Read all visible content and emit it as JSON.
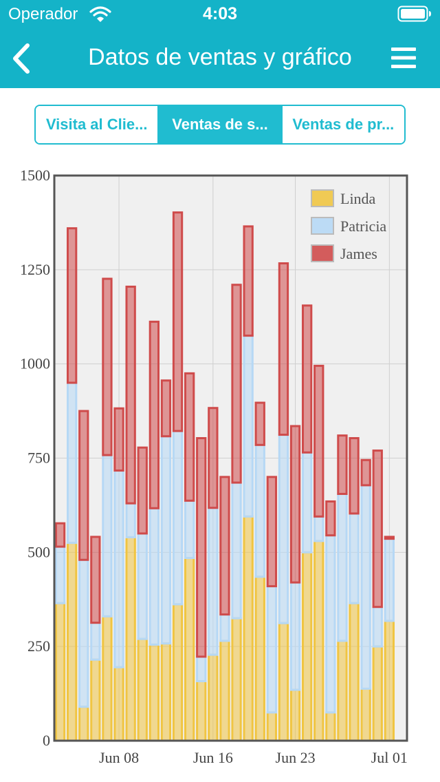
{
  "status": {
    "carrier": "Operador",
    "time": "4:03"
  },
  "nav": {
    "title": "Datos de ventas y gráfico"
  },
  "tabs": [
    {
      "label": "Visita al Clie...",
      "active": false
    },
    {
      "label": "Ventas de s...",
      "active": true
    },
    {
      "label": "Ventas de pr...",
      "active": false
    }
  ],
  "colors": {
    "header": "#14b3c8",
    "accent": "#20bcd0",
    "linda": "#f0c542",
    "patricia": "#b6d8f5",
    "james": "#cf4b4b"
  },
  "chart_data": {
    "type": "bar",
    "stacked": true,
    "categories": [
      "Jun 03",
      "Jun 04",
      "Jun 05",
      "Jun 06",
      "Jun 07",
      "Jun 08",
      "Jun 09",
      "Jun 10",
      "Jun 11",
      "Jun 12",
      "Jun 13",
      "Jun 14",
      "Jun 15",
      "Jun 16",
      "Jun 17",
      "Jun 18",
      "Jun 19",
      "Jun 20",
      "Jun 21",
      "Jun 22",
      "Jun 23",
      "Jun 24",
      "Jun 25",
      "Jun 26",
      "Jun 27",
      "Jun 28",
      "Jun 29",
      "Jun 30",
      "Jul 01",
      "Jul 02"
    ],
    "x_tick_labels": [
      "Jun 08",
      "Jun 16",
      "Jun 23",
      "Jul 01"
    ],
    "series": [
      {
        "name": "Linda",
        "values": [
          365,
          525,
          90,
          215,
          330,
          195,
          540,
          270,
          255,
          258,
          362,
          485,
          158,
          228,
          265,
          325,
          595,
          435,
          75,
          312,
          135,
          500,
          530,
          75,
          265,
          365,
          138,
          250,
          318,
          0
        ]
      },
      {
        "name": "Patricia",
        "values": [
          150,
          425,
          390,
          98,
          428,
          522,
          90,
          280,
          362,
          550,
          460,
          152,
          65,
          390,
          70,
          360,
          480,
          350,
          335,
          500,
          285,
          265,
          65,
          470,
          390,
          238,
          540,
          105,
          218,
          0
        ]
      },
      {
        "name": "James",
        "values": [
          62,
          410,
          395,
          228,
          468,
          165,
          575,
          228,
          495,
          148,
          580,
          338,
          580,
          265,
          365,
          525,
          290,
          112,
          290,
          455,
          415,
          390,
          400,
          90,
          155,
          200,
          67,
          415,
          5,
          0
        ]
      }
    ],
    "ylim": [
      0,
      1500
    ],
    "yticks": [
      0,
      250,
      500,
      750,
      1000,
      1250,
      1500
    ],
    "grid": true,
    "legend_position": "top-right"
  }
}
